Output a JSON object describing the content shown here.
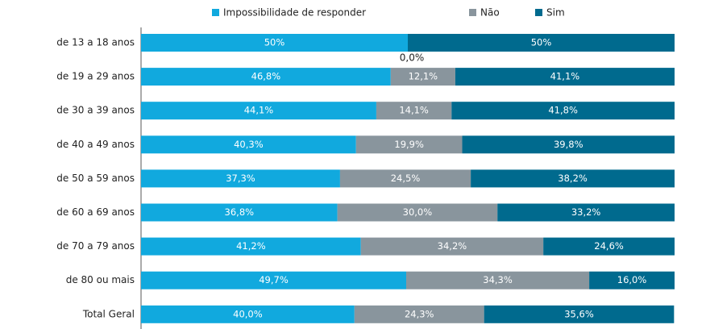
{
  "chart_data": {
    "type": "stacked-bar-horizontal",
    "categories": [
      "de 13 a 18 anos",
      "de 19 a 29 anos",
      "de 30 a 39 anos",
      "de 40 a 49 anos",
      "de 50 a 59 anos",
      "de 60 a 69 anos",
      "de 70 a 79 anos",
      "de 80 ou mais",
      "Total Geral"
    ],
    "xlim": [
      0,
      100
    ],
    "legend": "top",
    "series": [
      {
        "name": "Impossibilidade de responder",
        "color": "#11a9de",
        "values": [
          50,
          46.8,
          44.1,
          40.3,
          37.3,
          36.8,
          41.2,
          49.7,
          40.0
        ],
        "value_labels": [
          "50%",
          "46,8%",
          "44,1%",
          "40,3%",
          "37,3%",
          "36,8%",
          "41,2%",
          "49,7%",
          "40,0%"
        ]
      },
      {
        "name": "Não",
        "color": "#89959d",
        "values": [
          0,
          12.1,
          14.1,
          19.9,
          24.5,
          30.0,
          34.2,
          34.3,
          24.3
        ],
        "value_labels": [
          "0,0%",
          "12,1%",
          "14,1%",
          "19,9%",
          "24,5%",
          "30,0%",
          "34,2%",
          "34,3%",
          "24,3%"
        ]
      },
      {
        "name": "Sim",
        "color": "#006a8e",
        "values": [
          50,
          41.1,
          41.8,
          39.8,
          38.2,
          33.2,
          24.6,
          16.0,
          35.6
        ],
        "value_labels": [
          "50%",
          "41,1%",
          "41,8%",
          "39,8%",
          "38,2%",
          "33,2%",
          "24,6%",
          "16,0%",
          "35,6%"
        ]
      }
    ]
  }
}
